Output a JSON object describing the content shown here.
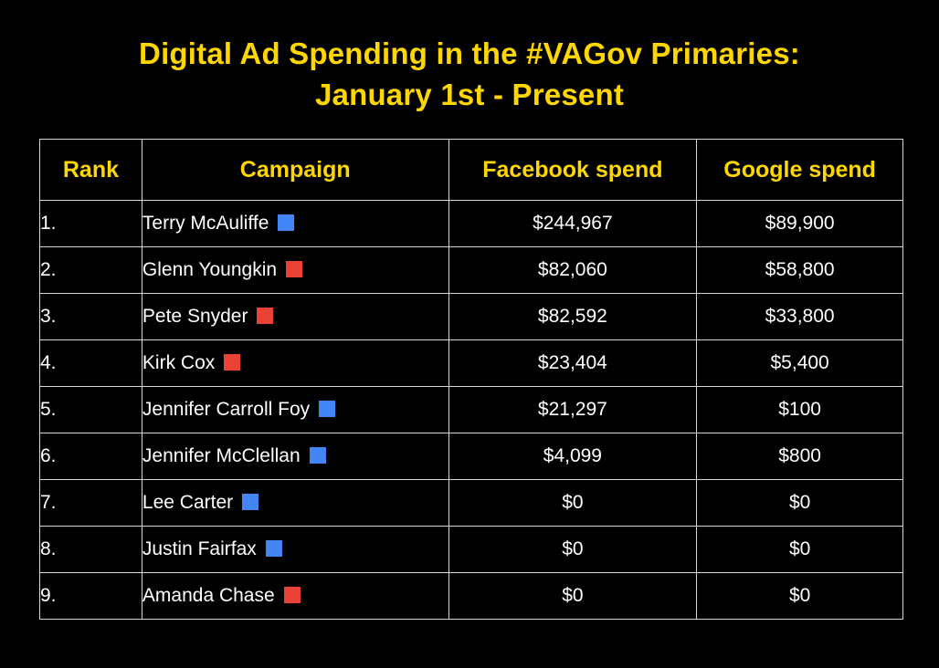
{
  "colors": {
    "background": "#000000",
    "accent_yellow": "#ffd600",
    "text": "#ffffff",
    "grid": "#d6d6d6",
    "dem": "#4285f4",
    "rep": "#ea4335"
  },
  "chart_data": {
    "type": "table",
    "title_line1": "Digital Ad Spending in the #VAGov Primaries:",
    "title_line2": "January 1st - Present",
    "columns": [
      "Rank",
      "Campaign",
      "Facebook spend",
      "Google spend"
    ],
    "rows": [
      {
        "rank": "1.",
        "campaign": "Terry McAuliffe",
        "party_icon": "blue-square-icon",
        "facebook": "$244,967",
        "google": "$89,900"
      },
      {
        "rank": "2.",
        "campaign": "Glenn Youngkin",
        "party_icon": "red-square-icon",
        "facebook": "$82,060",
        "google": "$58,800"
      },
      {
        "rank": "3.",
        "campaign": "Pete Snyder",
        "party_icon": "red-square-icon",
        "facebook": "$82,592",
        "google": "$33,800"
      },
      {
        "rank": "4.",
        "campaign": "Kirk Cox",
        "party_icon": "red-square-icon",
        "facebook": "$23,404",
        "google": "$5,400"
      },
      {
        "rank": "5.",
        "campaign": "Jennifer Carroll Foy",
        "party_icon": "blue-square-icon",
        "facebook": "$21,297",
        "google": "$100"
      },
      {
        "rank": "6.",
        "campaign": "Jennifer McClellan",
        "party_icon": "blue-square-icon",
        "facebook": "$4,099",
        "google": "$800"
      },
      {
        "rank": "7.",
        "campaign": "Lee Carter",
        "party_icon": "blue-square-icon",
        "facebook": "$0",
        "google": "$0"
      },
      {
        "rank": "8.",
        "campaign": "Justin Fairfax",
        "party_icon": "blue-square-icon",
        "facebook": "$0",
        "google": "$0"
      },
      {
        "rank": "9.",
        "campaign": "Amanda Chase",
        "party_icon": "red-square-icon",
        "facebook": "$0",
        "google": "$0"
      }
    ]
  }
}
